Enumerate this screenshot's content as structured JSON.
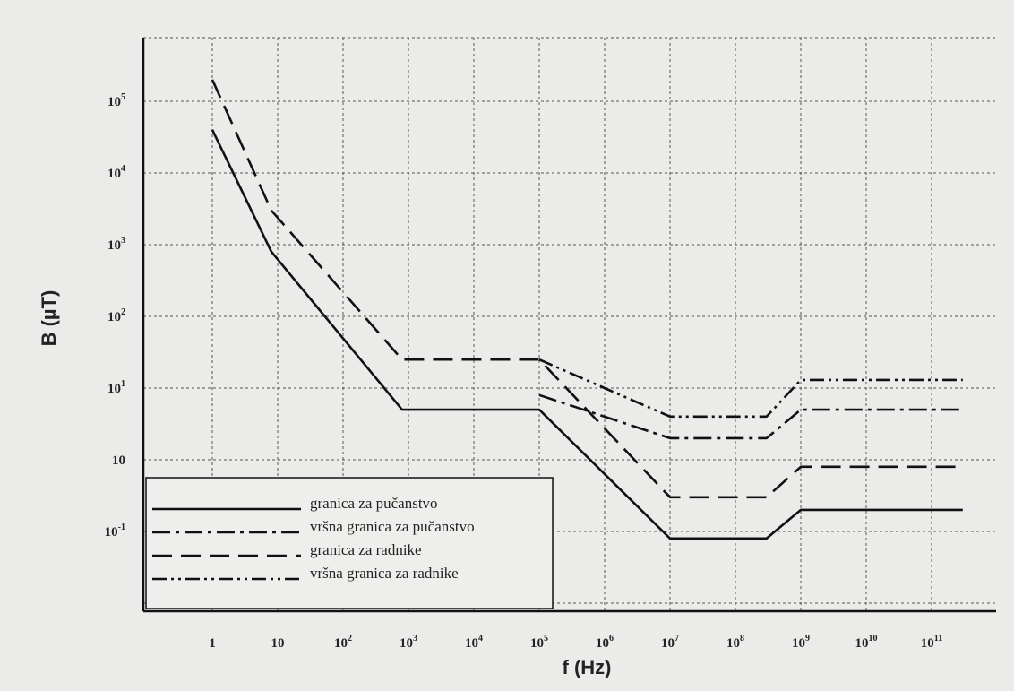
{
  "chart_data": {
    "type": "line",
    "xlabel": "f (Hz)",
    "ylabel": "B (µT)",
    "x_scale": "log",
    "y_scale": "log",
    "grid": true,
    "legend_position": "bottom-left",
    "x_ticks": [
      {
        "main": "1",
        "exp": ""
      },
      {
        "main": "10",
        "exp": ""
      },
      {
        "main": "10",
        "exp": "2"
      },
      {
        "main": "10",
        "exp": "3"
      },
      {
        "main": "10",
        "exp": "4"
      },
      {
        "main": "10",
        "exp": "5"
      },
      {
        "main": "10",
        "exp": "6"
      },
      {
        "main": "10",
        "exp": "7"
      },
      {
        "main": "10",
        "exp": "8"
      },
      {
        "main": "10",
        "exp": "9"
      },
      {
        "main": "10",
        "exp": "10"
      },
      {
        "main": "10",
        "exp": "11"
      }
    ],
    "y_ticks": [
      {
        "main": "10",
        "exp": "-1"
      },
      {
        "main": "10",
        "exp": ""
      },
      {
        "main": "10",
        "exp": "1"
      },
      {
        "main": "10",
        "exp": "2"
      },
      {
        "main": "10",
        "exp": "3"
      },
      {
        "main": "10",
        "exp": "4"
      },
      {
        "main": "10",
        "exp": "5"
      }
    ],
    "series": [
      {
        "name": "granica za pučanstvo",
        "style": "solid",
        "points": [
          [
            1,
            40000
          ],
          [
            8,
            800
          ],
          [
            800,
            5
          ],
          [
            100000,
            5
          ],
          [
            10000000,
            0.08
          ],
          [
            300000000,
            0.08
          ],
          [
            1000000000,
            0.2
          ],
          [
            300000000000,
            0.2
          ]
        ]
      },
      {
        "name": "vršna granica za pučanstvo",
        "style": "dashdot",
        "points": [
          [
            100000,
            8
          ],
          [
            10000000,
            2
          ],
          [
            300000000,
            2
          ],
          [
            1000000000,
            5
          ],
          [
            300000000000,
            5
          ]
        ]
      },
      {
        "name": "granica za radnike",
        "style": "dashed",
        "points": [
          [
            1,
            200000
          ],
          [
            8,
            3000
          ],
          [
            800,
            25
          ],
          [
            100000,
            25
          ],
          [
            10000000,
            0.3
          ],
          [
            300000000,
            0.3
          ],
          [
            1000000000,
            0.8
          ],
          [
            300000000000,
            0.8
          ]
        ]
      },
      {
        "name": "vršna granica za radnike",
        "style": "dashdotdot",
        "points": [
          [
            100000,
            25
          ],
          [
            10000000,
            4
          ],
          [
            300000000,
            4
          ],
          [
            1000000000,
            13
          ],
          [
            300000000000,
            13
          ]
        ]
      }
    ]
  }
}
